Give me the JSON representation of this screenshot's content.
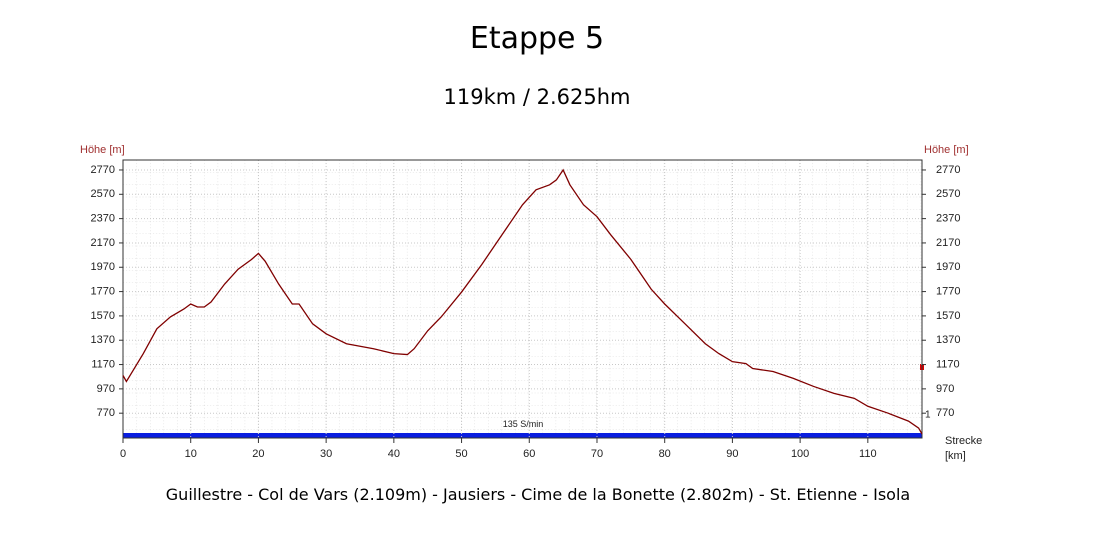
{
  "chart_data": {
    "type": "line",
    "title": "Etappe  5",
    "subtitle": "119km / 2.625hm",
    "caption": "Guillestre - Col de Vars (2.109m) - Jausiers - Cime de la Bonette (2.802m) - St. Etienne - Isola",
    "y_label": "Höhe [m]",
    "x_label": [
      "Strecke",
      "[km]"
    ],
    "annotation": "135 S/min",
    "marker_label": "1",
    "x": [
      0,
      0.5,
      3,
      5,
      7,
      9,
      10,
      11,
      12,
      13,
      15,
      17,
      19,
      20,
      21,
      23,
      25,
      26,
      28,
      30,
      33,
      37,
      40,
      42,
      43,
      45,
      47,
      50,
      53,
      56,
      59,
      61,
      63,
      64,
      65,
      66,
      68,
      70,
      72,
      75,
      78,
      80,
      83,
      86,
      88,
      90,
      92,
      93,
      96,
      99,
      102,
      105,
      108,
      110,
      113,
      116,
      117.5,
      118
    ],
    "series": [
      {
        "name": "Höhe",
        "color": "#800000",
        "values": [
          1080,
          1031,
          1260,
          1464,
          1562,
          1627,
          1668,
          1643,
          1643,
          1684,
          1831,
          1954,
          2035,
          2084,
          2019,
          1831,
          1668,
          1668,
          1505,
          1423,
          1341,
          1300,
          1260,
          1252,
          1300,
          1448,
          1562,
          1766,
          1994,
          2239,
          2484,
          2607,
          2648,
          2688,
          2770,
          2648,
          2484,
          2386,
          2239,
          2035,
          1790,
          1668,
          1505,
          1341,
          1260,
          1194,
          1178,
          1137,
          1113,
          1056,
          990,
          933,
          892,
          827,
          770,
          705,
          648,
          599
        ]
      }
    ],
    "xlim": [
      0,
      118
    ],
    "ylim": [
      566,
      2852
    ],
    "xticks": [
      0,
      10,
      20,
      30,
      40,
      50,
      60,
      70,
      80,
      90,
      100,
      110
    ],
    "yticks": [
      770,
      970,
      1170,
      1370,
      1570,
      1770,
      1970,
      2170,
      2370,
      2570,
      2770
    ],
    "grid": true
  }
}
